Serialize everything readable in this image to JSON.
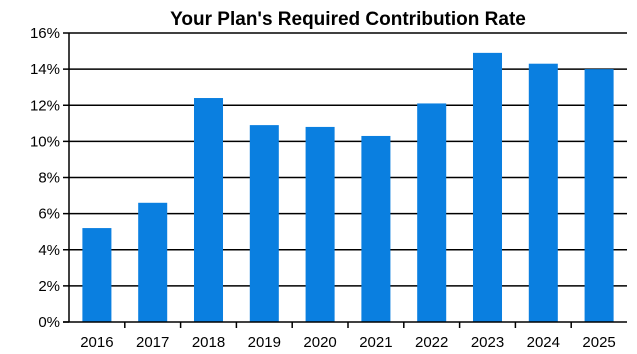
{
  "chart_data": {
    "type": "bar",
    "title": "Your Plan's Required Contribution Rate",
    "xlabel": "",
    "ylabel": "",
    "categories": [
      "2016",
      "2017",
      "2018",
      "2019",
      "2020",
      "2021",
      "2022",
      "2023",
      "2024",
      "2025"
    ],
    "values": [
      5.2,
      6.6,
      12.4,
      10.9,
      10.8,
      10.3,
      12.1,
      14.9,
      14.3,
      14.0
    ],
    "ylim": [
      0,
      16
    ],
    "yticks": [
      0,
      2,
      4,
      6,
      8,
      10,
      12,
      14,
      16
    ],
    "ytick_labels": [
      "0%",
      "2%",
      "4%",
      "6%",
      "8%",
      "10%",
      "12%",
      "14%",
      "16%"
    ],
    "grid": true,
    "legend": "none",
    "colors": {
      "bar": "#0A7FE0",
      "grid": "#000000",
      "axis": "#000000"
    }
  }
}
